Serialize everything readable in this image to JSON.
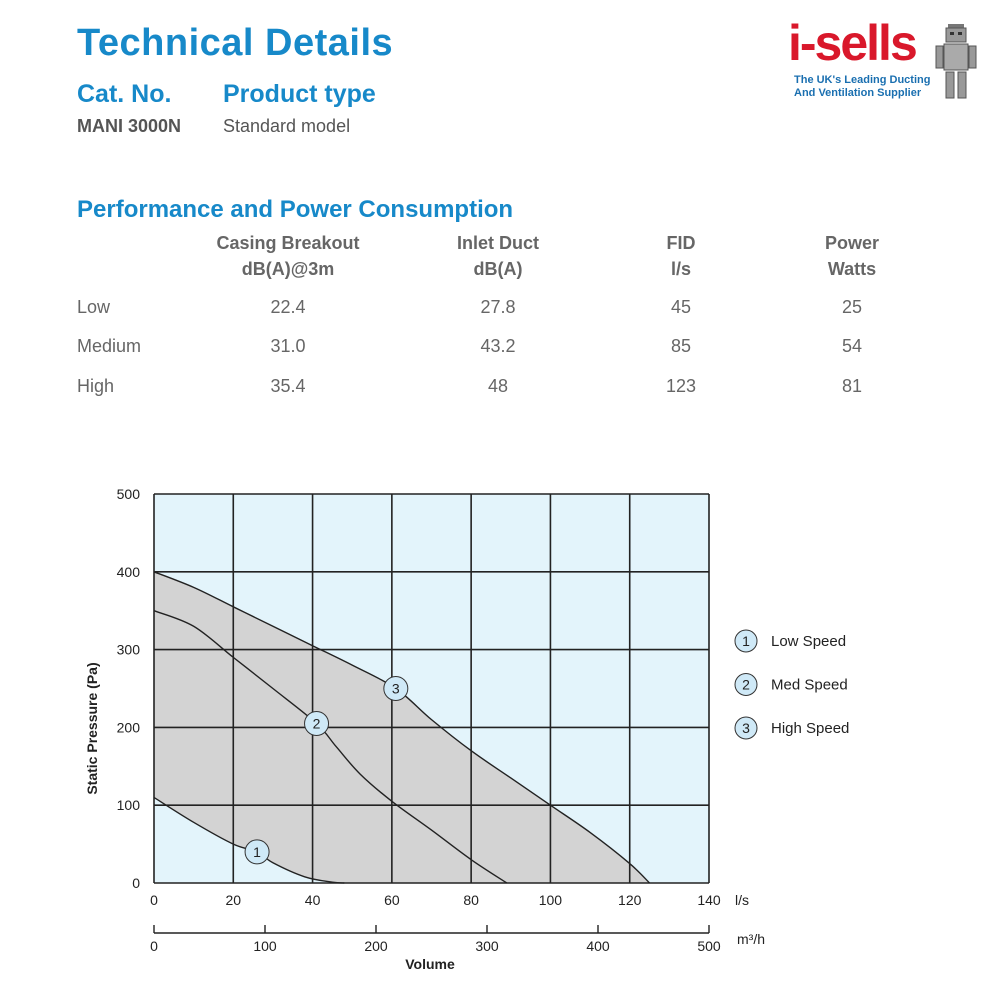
{
  "header": {
    "title": "Technical Details",
    "cat_label": "Cat. No.",
    "type_label": "Product type",
    "cat_value": "MANI 3000N",
    "type_value": "Standard model"
  },
  "logo": {
    "word": "i-sells",
    "tagline_1": "The UK's Leading Ducting",
    "tagline_2": "And Ventilation Supplier"
  },
  "performance": {
    "section_title": "Performance and Power Consumption",
    "columns": [
      {
        "line1": "Casing Breakout",
        "line2": "dB(A)@3m"
      },
      {
        "line1": "Inlet Duct",
        "line2": "dB(A)"
      },
      {
        "line1": "FID",
        "line2": "l/s"
      },
      {
        "line1": "Power",
        "line2": "Watts"
      }
    ],
    "rows": [
      {
        "label": "Low",
        "values": [
          "22.4",
          "27.8",
          "45",
          "25"
        ]
      },
      {
        "label": "Medium",
        "values": [
          "31.0",
          "43.2",
          "85",
          "54"
        ]
      },
      {
        "label": "High",
        "values": [
          "35.4",
          "48",
          "123",
          "81"
        ]
      }
    ]
  },
  "chart_data": {
    "type": "line",
    "ylabel": "Static Pressure (Pa)",
    "x_unit": "l/s",
    "x2_unit": "m³/h",
    "x2_label": "Volume",
    "xlim": [
      0,
      140
    ],
    "ylim": [
      0,
      500
    ],
    "x2lim": [
      0,
      500
    ],
    "x_ticks": [
      0,
      20,
      40,
      60,
      80,
      100,
      120,
      140
    ],
    "y_ticks": [
      0,
      100,
      200,
      300,
      400,
      500
    ],
    "x2_ticks": [
      0,
      100,
      200,
      300,
      400,
      500
    ],
    "grid": true,
    "legend_position": "right",
    "colors": {
      "plot_bg": "#e3f4fb",
      "fill": "#d3d3d3",
      "marker_fill": "#cfe9f7",
      "line": "#222222"
    },
    "series": [
      {
        "name": "Low Speed",
        "marker": "1",
        "x": [
          0,
          10,
          20,
          26,
          30,
          38,
          45,
          48
        ],
        "y": [
          110,
          78,
          50,
          40,
          26,
          8,
          1,
          0
        ],
        "marker_at": [
          26,
          40
        ]
      },
      {
        "name": "Med Speed",
        "marker": "2",
        "x": [
          0,
          10,
          20,
          30,
          41,
          46,
          52,
          60,
          70,
          80,
          89
        ],
        "y": [
          350,
          330,
          290,
          250,
          205,
          175,
          140,
          105,
          68,
          30,
          0
        ],
        "marker_at": [
          41,
          205
        ]
      },
      {
        "name": "High Speed",
        "marker": "3",
        "x": [
          0,
          10,
          20,
          30,
          40,
          50,
          61,
          70,
          80,
          90,
          100,
          110,
          120,
          125
        ],
        "y": [
          400,
          380,
          355,
          330,
          305,
          280,
          250,
          210,
          170,
          135,
          100,
          65,
          25,
          0
        ],
        "marker_at": [
          61,
          250
        ]
      }
    ]
  }
}
